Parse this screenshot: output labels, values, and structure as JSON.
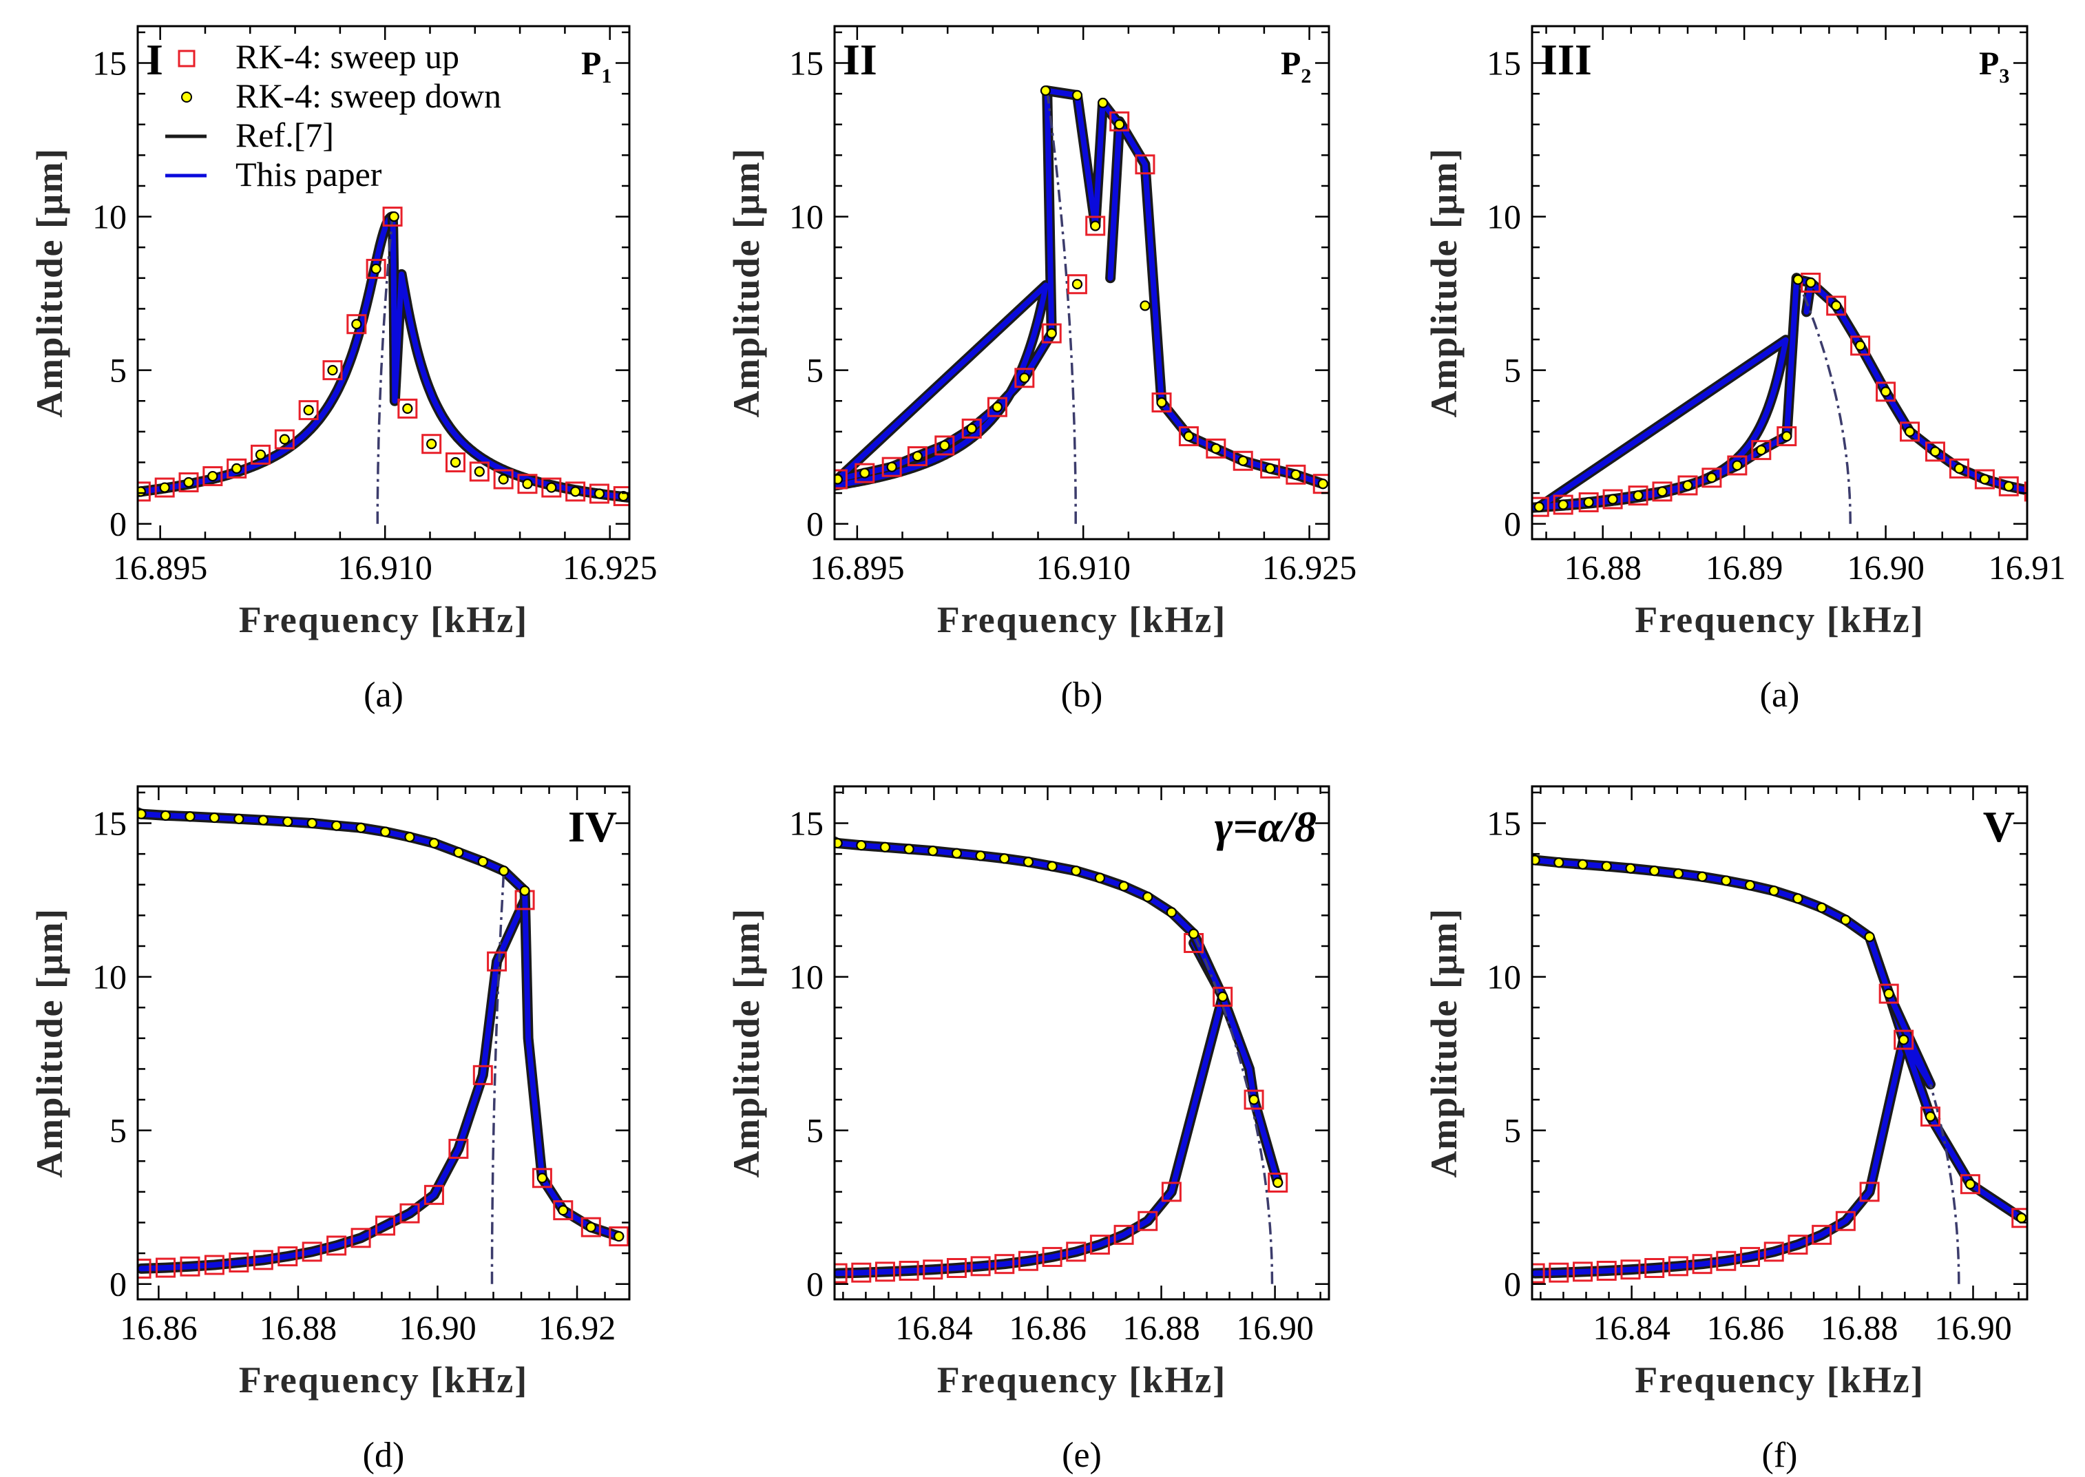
{
  "colors": {
    "sweep_up": "#e8202a",
    "sweep_down_fill": "#ffff00",
    "ref_line": "#1a1a1a",
    "this_paper": "#0a0adc",
    "unstable_dash": "#3c3c6c"
  },
  "legend": {
    "items": [
      {
        "label": "RK-4: sweep up",
        "marker": "square"
      },
      {
        "label": "RK-4: sweep down",
        "marker": "dot"
      },
      {
        "label": "Ref.[7]",
        "marker": "black-line"
      },
      {
        "label": "This paper",
        "marker": "blue-line"
      }
    ]
  },
  "chart_data": [
    {
      "type": "line",
      "id": "a1",
      "caption": "(a)",
      "roman": "I",
      "tag": "P",
      "tag_sub": "1",
      "xlabel": "Frequency [kHz]",
      "ylabel": "Amplitude [μm]",
      "xlim": [
        16.8935,
        16.9263
      ],
      "ylim": [
        -0.5,
        16.2
      ],
      "xticks": [
        "16.895",
        "16.910",
        "16.925"
      ],
      "xtick_values": [
        16.895,
        16.91,
        16.925
      ],
      "yticks": [
        "0",
        "5",
        "10",
        "15"
      ],
      "ytick_values": [
        0,
        5,
        10,
        15
      ],
      "f0": 16.9095,
      "peak": [
        16.9105,
        10.0
      ],
      "fold": null,
      "ridge_end": null,
      "up_markers": [
        [
          16.8937,
          1.05
        ],
        [
          16.8953,
          1.18
        ],
        [
          16.8969,
          1.35
        ],
        [
          16.8985,
          1.55
        ],
        [
          16.9001,
          1.8
        ],
        [
          16.9017,
          2.25
        ],
        [
          16.9033,
          2.75
        ],
        [
          16.9049,
          3.7
        ],
        [
          16.9065,
          5.0
        ],
        [
          16.9081,
          6.5
        ],
        [
          16.9094,
          8.3
        ],
        [
          16.9105,
          10.0
        ],
        [
          16.9115,
          3.75
        ],
        [
          16.9131,
          2.6
        ],
        [
          16.9147,
          2.0
        ],
        [
          16.9163,
          1.7
        ],
        [
          16.9179,
          1.45
        ],
        [
          16.9195,
          1.3
        ],
        [
          16.9211,
          1.18
        ],
        [
          16.9227,
          1.05
        ],
        [
          16.9243,
          0.98
        ],
        [
          16.9259,
          0.9
        ]
      ],
      "down_markers": [
        [
          16.8937,
          1.05
        ],
        [
          16.8953,
          1.18
        ],
        [
          16.8969,
          1.35
        ],
        [
          16.8985,
          1.55
        ],
        [
          16.9001,
          1.8
        ],
        [
          16.9017,
          2.25
        ],
        [
          16.9033,
          2.75
        ],
        [
          16.9049,
          3.7
        ],
        [
          16.9065,
          5.0
        ],
        [
          16.9081,
          6.5
        ],
        [
          16.9094,
          8.3
        ],
        [
          16.9106,
          10.0
        ],
        [
          16.9115,
          3.75
        ],
        [
          16.9131,
          2.6
        ],
        [
          16.9147,
          2.0
        ],
        [
          16.9163,
          1.7
        ],
        [
          16.9179,
          1.45
        ],
        [
          16.9195,
          1.3
        ],
        [
          16.9211,
          1.18
        ],
        [
          16.9227,
          1.05
        ],
        [
          16.9243,
          0.98
        ],
        [
          16.9259,
          0.9
        ]
      ]
    },
    {
      "type": "line",
      "id": "b",
      "caption": "(b)",
      "roman": "II",
      "tag": "P",
      "tag_sub": "2",
      "xlabel": "Frequency [kHz]",
      "ylabel": "Amplitude [μm]",
      "xlim": [
        16.8935,
        16.9263
      ],
      "ylim": [
        -0.5,
        16.2
      ],
      "xticks": [
        "16.895",
        "16.910",
        "16.925"
      ],
      "xtick_values": [
        16.895,
        16.91,
        16.925
      ],
      "yticks": [
        "0",
        "5",
        "10",
        "15"
      ],
      "ytick_values": [
        0,
        5,
        10,
        15
      ],
      "f0": 16.9095,
      "peak": [
        16.9076,
        14.1
      ],
      "fold": [
        16.9118,
        8.0
      ],
      "ridge_end": null,
      "up_markers": [
        [
          16.8937,
          1.45
        ],
        [
          16.8955,
          1.65
        ],
        [
          16.8973,
          1.85
        ],
        [
          16.899,
          2.2
        ],
        [
          16.9008,
          2.55
        ],
        [
          16.9026,
          3.1
        ],
        [
          16.9043,
          3.8
        ],
        [
          16.9061,
          4.75
        ],
        [
          16.9079,
          6.2
        ],
        [
          16.9096,
          7.8
        ],
        [
          16.9108,
          9.7
        ],
        [
          16.9124,
          13.1
        ],
        [
          16.9141,
          11.7
        ],
        [
          16.9152,
          3.95
        ],
        [
          16.917,
          2.85
        ],
        [
          16.9188,
          2.45
        ],
        [
          16.9206,
          2.05
        ],
        [
          16.9224,
          1.8
        ],
        [
          16.9241,
          1.6
        ],
        [
          16.9259,
          1.3
        ]
      ],
      "down_markers": [
        [
          16.8937,
          1.45
        ],
        [
          16.8955,
          1.65
        ],
        [
          16.8973,
          1.85
        ],
        [
          16.899,
          2.2
        ],
        [
          16.9008,
          2.55
        ],
        [
          16.9026,
          3.1
        ],
        [
          16.9043,
          3.8
        ],
        [
          16.9061,
          4.75
        ],
        [
          16.9079,
          6.2
        ],
        [
          16.9096,
          7.8
        ],
        [
          16.9108,
          9.7
        ],
        [
          16.9075,
          14.1
        ],
        [
          16.9096,
          13.95
        ],
        [
          16.9113,
          13.7
        ],
        [
          16.9124,
          13.0
        ],
        [
          16.9141,
          7.1
        ],
        [
          16.9152,
          3.95
        ],
        [
          16.917,
          2.85
        ],
        [
          16.9188,
          2.45
        ],
        [
          16.9206,
          2.05
        ],
        [
          16.9224,
          1.8
        ],
        [
          16.9241,
          1.6
        ],
        [
          16.9259,
          1.3
        ]
      ]
    },
    {
      "type": "line",
      "id": "a2",
      "caption": "(a)",
      "roman": "III",
      "tag": "P",
      "tag_sub": "3",
      "xlabel": "Frequency [kHz]",
      "ylabel": "Amplitude [μm]",
      "xlim": [
        16.875,
        16.91
      ],
      "ylim": [
        -0.5,
        16.2
      ],
      "xticks": [
        "16.88",
        "16.89",
        "16.90",
        "16.91"
      ],
      "xtick_values": [
        16.88,
        16.89,
        16.9,
        16.91
      ],
      "yticks": [
        "0",
        "5",
        "10",
        "15"
      ],
      "ytick_values": [
        0,
        5,
        10,
        15
      ],
      "f0": 16.8975,
      "peak": [
        16.8937,
        8.0
      ],
      "fold": [
        16.8944,
        6.9
      ],
      "ridge_end": null,
      "up_markers": [
        [
          16.8755,
          0.55
        ],
        [
          16.8772,
          0.62
        ],
        [
          16.879,
          0.7
        ],
        [
          16.8807,
          0.8
        ],
        [
          16.8825,
          0.92
        ],
        [
          16.8842,
          1.05
        ],
        [
          16.886,
          1.25
        ],
        [
          16.8877,
          1.5
        ],
        [
          16.8895,
          1.9
        ],
        [
          16.8912,
          2.4
        ],
        [
          16.893,
          2.85
        ],
        [
          16.8947,
          7.85
        ],
        [
          16.8965,
          7.1
        ],
        [
          16.8982,
          5.8
        ],
        [
          16.9,
          4.3
        ],
        [
          16.9017,
          3.0
        ],
        [
          16.9035,
          2.35
        ],
        [
          16.9052,
          1.8
        ],
        [
          16.907,
          1.45
        ],
        [
          16.9087,
          1.22
        ],
        [
          16.9105,
          1.05
        ]
      ],
      "down_markers": [
        [
          16.8755,
          0.55
        ],
        [
          16.8772,
          0.62
        ],
        [
          16.879,
          0.7
        ],
        [
          16.8807,
          0.8
        ],
        [
          16.8825,
          0.92
        ],
        [
          16.8842,
          1.05
        ],
        [
          16.886,
          1.25
        ],
        [
          16.8877,
          1.5
        ],
        [
          16.8895,
          1.9
        ],
        [
          16.8912,
          2.4
        ],
        [
          16.893,
          2.85
        ],
        [
          16.8938,
          7.95
        ],
        [
          16.8947,
          7.85
        ],
        [
          16.8965,
          7.1
        ],
        [
          16.8982,
          5.8
        ],
        [
          16.9,
          4.3
        ],
        [
          16.9017,
          3.0
        ],
        [
          16.9035,
          2.35
        ],
        [
          16.9052,
          1.8
        ],
        [
          16.907,
          1.45
        ],
        [
          16.9087,
          1.22
        ],
        [
          16.9105,
          1.05
        ]
      ]
    },
    {
      "type": "line",
      "id": "d",
      "caption": "(d)",
      "roman": "IV",
      "tag": "",
      "tag_sub": "",
      "xlabel": "Frequency [kHz]",
      "ylabel": "Amplitude [μm]",
      "xlim": [
        16.857,
        16.9275
      ],
      "ylim": [
        -0.5,
        16.2
      ],
      "xticks": [
        "16.86",
        "16.88",
        "16.90",
        "16.92"
      ],
      "xtick_values": [
        16.86,
        16.88,
        16.9,
        16.92
      ],
      "yticks": [
        "0",
        "5",
        "10",
        "15"
      ],
      "ytick_values": [
        0,
        5,
        10,
        15
      ],
      "f0": 16.9078,
      "peak": null,
      "fold": [
        16.913,
        8.0
      ],
      "ridge_end": [
        16.8575,
        15.3
      ],
      "up_markers": [
        [
          16.8575,
          0.5
        ],
        [
          16.861,
          0.53
        ],
        [
          16.8645,
          0.57
        ],
        [
          16.868,
          0.62
        ],
        [
          16.8715,
          0.7
        ],
        [
          16.875,
          0.78
        ],
        [
          16.8785,
          0.9
        ],
        [
          16.882,
          1.05
        ],
        [
          16.8855,
          1.25
        ],
        [
          16.889,
          1.5
        ],
        [
          16.8925,
          1.9
        ],
        [
          16.896,
          2.3
        ],
        [
          16.8995,
          2.9
        ],
        [
          16.903,
          4.4
        ],
        [
          16.9065,
          6.8
        ],
        [
          16.9085,
          10.5
        ],
        [
          16.9125,
          12.5
        ],
        [
          16.915,
          3.45
        ],
        [
          16.918,
          2.4
        ],
        [
          16.922,
          1.85
        ],
        [
          16.926,
          1.55
        ]
      ],
      "down_markers": [
        [
          16.8575,
          15.3
        ],
        [
          16.861,
          15.25
        ],
        [
          16.8645,
          15.22
        ],
        [
          16.868,
          15.18
        ],
        [
          16.8715,
          15.14
        ],
        [
          16.875,
          15.1
        ],
        [
          16.8785,
          15.05
        ],
        [
          16.882,
          15.0
        ],
        [
          16.8855,
          14.92
        ],
        [
          16.889,
          14.85
        ],
        [
          16.8925,
          14.72
        ],
        [
          16.896,
          14.55
        ],
        [
          16.8995,
          14.35
        ],
        [
          16.903,
          14.05
        ],
        [
          16.9065,
          13.75
        ],
        [
          16.9095,
          13.45
        ],
        [
          16.9125,
          12.8
        ],
        [
          16.915,
          3.45
        ],
        [
          16.918,
          2.4
        ],
        [
          16.922,
          1.85
        ],
        [
          16.926,
          1.55
        ]
      ]
    },
    {
      "type": "line",
      "id": "e",
      "caption": "(e)",
      "roman": "γ=α/8",
      "tag": "",
      "tag_sub": "",
      "xlabel": "Frequency [kHz]",
      "ylabel": "Amplitude [μm]",
      "xlim": [
        16.8225,
        16.9095
      ],
      "ylim": [
        -0.5,
        16.2
      ],
      "xticks": [
        "16.84",
        "16.86",
        "16.88",
        "16.90"
      ],
      "xtick_values": [
        16.84,
        16.86,
        16.88,
        16.9
      ],
      "yticks": [
        "0",
        "5",
        "10",
        "15"
      ],
      "ytick_values": [
        0,
        5,
        10,
        15
      ],
      "f0": 16.8995,
      "peak": null,
      "fold": [
        16.8955,
        7.0
      ],
      "ridge_end": [
        16.823,
        14.35
      ],
      "up_markers": [
        [
          16.823,
          0.35
        ],
        [
          16.8272,
          0.37
        ],
        [
          16.8314,
          0.4
        ],
        [
          16.8356,
          0.43
        ],
        [
          16.8398,
          0.47
        ],
        [
          16.844,
          0.52
        ],
        [
          16.8482,
          0.58
        ],
        [
          16.8524,
          0.65
        ],
        [
          16.8566,
          0.75
        ],
        [
          16.8608,
          0.88
        ],
        [
          16.865,
          1.05
        ],
        [
          16.8692,
          1.28
        ],
        [
          16.8734,
          1.6
        ],
        [
          16.8776,
          2.05
        ],
        [
          16.8818,
          3.0
        ],
        [
          16.8857,
          11.1
        ],
        [
          16.8908,
          9.35
        ],
        [
          16.8963,
          6.0
        ],
        [
          16.9005,
          3.3
        ]
      ],
      "down_markers": [
        [
          16.823,
          14.35
        ],
        [
          16.8272,
          14.28
        ],
        [
          16.8314,
          14.22
        ],
        [
          16.8356,
          14.16
        ],
        [
          16.8398,
          14.1
        ],
        [
          16.844,
          14.02
        ],
        [
          16.8482,
          13.94
        ],
        [
          16.8524,
          13.85
        ],
        [
          16.8566,
          13.74
        ],
        [
          16.8608,
          13.6
        ],
        [
          16.865,
          13.45
        ],
        [
          16.8692,
          13.22
        ],
        [
          16.8734,
          12.95
        ],
        [
          16.8776,
          12.6
        ],
        [
          16.8818,
          12.1
        ],
        [
          16.8857,
          11.4
        ],
        [
          16.8908,
          9.35
        ],
        [
          16.8963,
          6.0
        ],
        [
          16.9005,
          3.3
        ]
      ]
    },
    {
      "type": "line",
      "id": "f",
      "caption": "(f)",
      "roman": "V",
      "tag": "",
      "tag_sub": "",
      "xlabel": "Frequency [kHz]",
      "ylabel": "Amplitude [μm]",
      "xlim": [
        16.8225,
        16.9095
      ],
      "ylim": [
        -0.5,
        16.2
      ],
      "xticks": [
        "16.84",
        "16.86",
        "16.88",
        "16.90"
      ],
      "xtick_values": [
        16.84,
        16.86,
        16.88,
        16.9
      ],
      "yticks": [
        "0",
        "5",
        "10",
        "15"
      ],
      "ytick_values": [
        0,
        5,
        10,
        15
      ],
      "f0": 16.8975,
      "peak": null,
      "fold": [
        16.8925,
        6.5
      ],
      "ridge_end": [
        16.823,
        13.8
      ],
      "up_markers": [
        [
          16.823,
          0.35
        ],
        [
          16.8272,
          0.37
        ],
        [
          16.8314,
          0.4
        ],
        [
          16.8356,
          0.43
        ],
        [
          16.8398,
          0.47
        ],
        [
          16.844,
          0.52
        ],
        [
          16.8482,
          0.58
        ],
        [
          16.8524,
          0.65
        ],
        [
          16.8566,
          0.75
        ],
        [
          16.8608,
          0.88
        ],
        [
          16.865,
          1.05
        ],
        [
          16.8692,
          1.28
        ],
        [
          16.8734,
          1.6
        ],
        [
          16.8776,
          2.05
        ],
        [
          16.8818,
          3.0
        ],
        [
          16.8852,
          9.45
        ],
        [
          16.8878,
          7.95
        ],
        [
          16.8925,
          5.45
        ],
        [
          16.8995,
          3.25
        ],
        [
          16.9085,
          2.15
        ]
      ],
      "down_markers": [
        [
          16.823,
          13.8
        ],
        [
          16.8272,
          13.72
        ],
        [
          16.8314,
          13.66
        ],
        [
          16.8356,
          13.6
        ],
        [
          16.8398,
          13.53
        ],
        [
          16.844,
          13.45
        ],
        [
          16.8482,
          13.36
        ],
        [
          16.8524,
          13.26
        ],
        [
          16.8566,
          13.13
        ],
        [
          16.8608,
          12.98
        ],
        [
          16.865,
          12.8
        ],
        [
          16.8692,
          12.55
        ],
        [
          16.8734,
          12.25
        ],
        [
          16.8776,
          11.85
        ],
        [
          16.8818,
          11.3
        ],
        [
          16.8852,
          9.45
        ],
        [
          16.8878,
          7.95
        ],
        [
          16.8925,
          5.45
        ],
        [
          16.8995,
          3.25
        ],
        [
          16.9085,
          2.15
        ]
      ]
    }
  ]
}
